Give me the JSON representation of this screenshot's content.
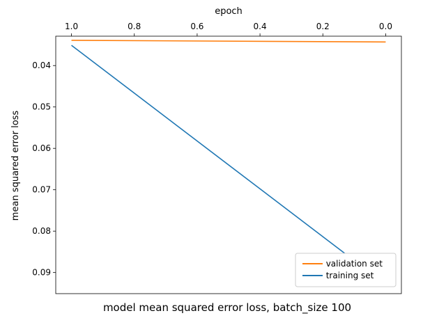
{
  "chart_data": {
    "type": "line",
    "title": "model mean squared error loss, batch_size 100",
    "xlabel": "epoch",
    "ylabel": "mean squared error loss",
    "xlim": [
      -0.05,
      1.05
    ],
    "ylim": [
      0.0329,
      0.0951
    ],
    "xticks": [
      "0.0",
      "0.2",
      "0.4",
      "0.6",
      "0.8",
      "1.0"
    ],
    "yticks": [
      "0.04",
      "0.05",
      "0.06",
      "0.07",
      "0.08",
      "0.09"
    ],
    "orientation": "rotated 180 degrees",
    "grid": false,
    "legend_position": "lower-right",
    "series": [
      {
        "name": "training set",
        "color": "#1f77b4",
        "x": [
          0.0,
          1.0
        ],
        "y": [
          0.0929,
          0.0351
        ]
      },
      {
        "name": "validation set",
        "color": "#ff7f0e",
        "x": [
          0.0,
          1.0
        ],
        "y": [
          0.0343,
          0.0339
        ]
      }
    ]
  }
}
